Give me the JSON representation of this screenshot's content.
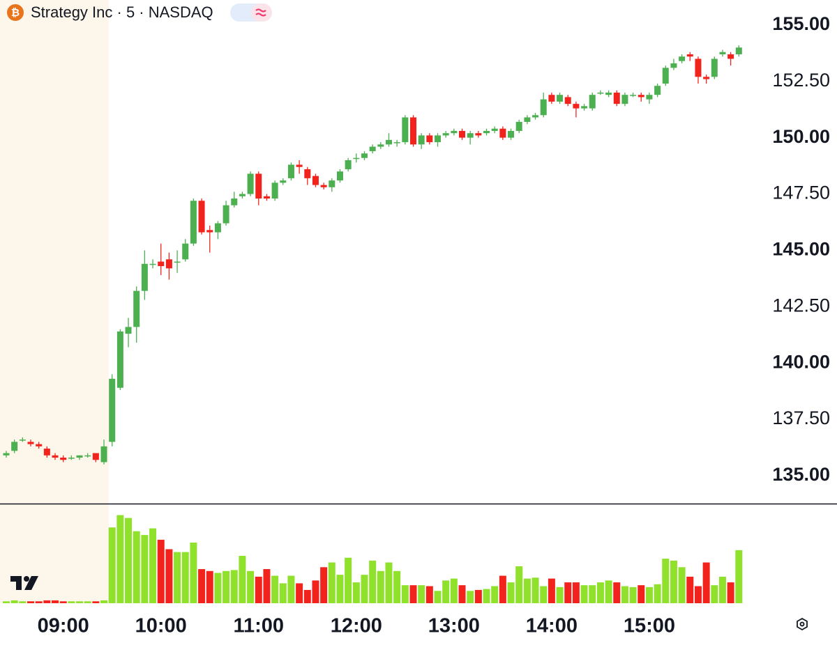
{
  "header": {
    "logo": "₿",
    "title": "Strategy Inc · 5 · NASDAQ"
  },
  "chart_data": {
    "type": "candlestick",
    "categories": [
      null,
      null,
      null,
      null,
      null,
      null,
      null,
      "09:00",
      null,
      null,
      null,
      null,
      null,
      null,
      null,
      null,
      null,
      null,
      null,
      "10:00",
      null,
      null,
      null,
      null,
      null,
      null,
      null,
      null,
      null,
      null,
      null,
      "11:00",
      null,
      null,
      null,
      null,
      null,
      null,
      null,
      null,
      null,
      null,
      null,
      "12:00",
      null,
      null,
      null,
      null,
      null,
      null,
      null,
      null,
      null,
      null,
      null,
      "13:00",
      null,
      null,
      null,
      null,
      null,
      null,
      null,
      null,
      null,
      null,
      null,
      "14:00",
      null,
      null,
      null,
      null,
      null,
      null,
      null,
      null,
      null,
      null,
      null,
      "15:00",
      null,
      null,
      null,
      null,
      null,
      null,
      null,
      null,
      null,
      null,
      null
    ],
    "open": [
      135.9,
      136.1,
      136.6,
      136.5,
      136.4,
      136.2,
      135.9,
      135.8,
      135.8,
      135.8,
      135.9,
      136.0,
      135.6,
      136.5,
      138.9,
      141.3,
      141.6,
      143.2,
      144.4,
      144.5,
      144.6,
      144.5,
      144.6,
      145.3,
      147.2,
      145.9,
      145.8,
      146.2,
      147.0,
      147.4,
      147.5,
      148.4,
      147.4,
      147.3,
      148.0,
      148.2,
      148.8,
      148.6,
      148.3,
      147.9,
      147.8,
      148.1,
      148.6,
      149.1,
      149.1,
      149.4,
      149.6,
      149.7,
      149.8,
      149.8,
      150.9,
      149.7,
      150.1,
      149.8,
      150.1,
      150.2,
      150.3,
      150.0,
      150.2,
      150.2,
      150.3,
      150.4,
      150.0,
      150.3,
      150.7,
      150.9,
      151.0,
      151.9,
      151.6,
      151.8,
      151.5,
      151.3,
      151.3,
      152.0,
      151.9,
      152.0,
      151.5,
      151.9,
      151.9,
      151.7,
      151.9,
      152.4,
      153.1,
      153.4,
      153.7,
      153.5,
      152.7,
      152.7,
      153.7,
      153.7,
      153.7
    ],
    "high": [
      136.1,
      136.6,
      136.7,
      136.6,
      136.5,
      136.3,
      136.0,
      135.9,
      135.9,
      135.9,
      136.0,
      136.0,
      136.6,
      139.5,
      141.5,
      142.0,
      143.4,
      145.0,
      144.6,
      145.3,
      144.9,
      145.0,
      145.5,
      147.3,
      147.3,
      146.1,
      146.3,
      147.2,
      147.6,
      147.6,
      148.5,
      148.5,
      147.5,
      148.1,
      148.2,
      148.9,
      149.0,
      148.7,
      148.4,
      148.0,
      148.2,
      148.6,
      149.1,
      149.3,
      149.4,
      149.7,
      149.8,
      150.2,
      149.9,
      151.0,
      151.0,
      150.2,
      150.2,
      150.2,
      150.3,
      150.4,
      150.4,
      150.3,
      150.3,
      150.4,
      150.5,
      150.5,
      150.4,
      150.8,
      151.0,
      151.1,
      152.0,
      152.0,
      152.0,
      151.9,
      151.6,
      151.5,
      152.0,
      152.1,
      152.1,
      152.1,
      152.0,
      152.0,
      152.0,
      152.0,
      152.4,
      153.2,
      153.5,
      153.7,
      153.8,
      153.6,
      152.8,
      153.6,
      153.9,
      153.8,
      154.1
    ],
    "low": [
      135.8,
      136.0,
      136.5,
      136.3,
      136.2,
      135.8,
      135.7,
      135.6,
      135.7,
      135.7,
      135.8,
      135.6,
      135.5,
      136.3,
      138.8,
      140.7,
      140.9,
      142.8,
      144.2,
      143.9,
      143.7,
      144.0,
      144.5,
      145.2,
      145.7,
      144.9,
      145.5,
      146.1,
      146.9,
      147.3,
      147.4,
      147.0,
      147.2,
      147.2,
      147.9,
      148.1,
      148.4,
      147.9,
      147.8,
      147.7,
      147.6,
      148.0,
      148.5,
      148.9,
      149.0,
      149.3,
      149.5,
      149.6,
      149.6,
      149.7,
      149.6,
      149.5,
      149.7,
      149.6,
      150.0,
      150.1,
      149.9,
      149.7,
      150.0,
      150.1,
      150.2,
      149.9,
      149.9,
      150.2,
      150.6,
      150.8,
      150.9,
      151.5,
      151.5,
      151.4,
      150.9,
      151.2,
      151.2,
      151.9,
      151.8,
      151.4,
      151.4,
      151.8,
      151.6,
      151.5,
      151.8,
      152.3,
      153.0,
      153.3,
      153.4,
      152.4,
      152.4,
      152.6,
      153.6,
      153.2,
      153.6
    ],
    "close": [
      136.0,
      136.5,
      136.6,
      136.4,
      136.3,
      135.9,
      135.8,
      135.7,
      135.8,
      135.9,
      135.9,
      135.7,
      136.3,
      139.3,
      141.4,
      141.6,
      143.2,
      144.4,
      144.4,
      144.3,
      144.2,
      144.5,
      145.3,
      147.2,
      145.8,
      145.8,
      146.2,
      147.0,
      147.3,
      147.5,
      148.4,
      147.3,
      147.3,
      148.0,
      148.1,
      148.8,
      148.7,
      148.2,
      147.9,
      147.8,
      148.1,
      148.5,
      149.0,
      149.1,
      149.3,
      149.6,
      149.7,
      149.9,
      149.8,
      150.9,
      149.7,
      150.1,
      149.8,
      150.1,
      150.2,
      150.3,
      150.0,
      150.2,
      150.1,
      150.3,
      150.4,
      150.0,
      150.3,
      150.7,
      150.9,
      151.0,
      151.7,
      151.6,
      151.9,
      151.5,
      151.3,
      151.4,
      151.9,
      152.0,
      152.0,
      151.5,
      151.9,
      151.9,
      151.8,
      151.9,
      152.3,
      153.1,
      153.3,
      153.6,
      153.6,
      152.7,
      152.6,
      153.5,
      153.8,
      153.5,
      154.0
    ],
    "volume": [
      2,
      3,
      2,
      2,
      2,
      3,
      3,
      2,
      2,
      2,
      2,
      2,
      3,
      80,
      93,
      90,
      76,
      72,
      79,
      67,
      57,
      54,
      54,
      64,
      36,
      34,
      32,
      34,
      35,
      50,
      34,
      28,
      36,
      29,
      21,
      29,
      21,
      14,
      24,
      38,
      43,
      30,
      48,
      22,
      30,
      45,
      34,
      43,
      34,
      19,
      19,
      19,
      18,
      13,
      24,
      26,
      19,
      13,
      14,
      15,
      18,
      29,
      22,
      39,
      26,
      27,
      18,
      26,
      17,
      22,
      22,
      19,
      19,
      22,
      24,
      22,
      18,
      17,
      19,
      17,
      20,
      47,
      45,
      38,
      28,
      18,
      43,
      19,
      28,
      22,
      56
    ],
    "ylim": [
      133.76,
      156.11
    ],
    "yticks": [
      {
        "value": 135,
        "label": "135.00"
      },
      {
        "value": 137.5,
        "label": "137.50"
      },
      {
        "value": 140,
        "label": "140.00"
      },
      {
        "value": 142.5,
        "label": "142.50"
      },
      {
        "value": 145,
        "label": "145.00"
      },
      {
        "value": 147.5,
        "label": "147.50"
      },
      {
        "value": 150,
        "label": "150.00"
      },
      {
        "value": 152.5,
        "label": "152.50"
      },
      {
        "value": 155,
        "label": "155.00"
      }
    ],
    "volume_ylim": [
      0,
      100
    ],
    "up_color": "#4caf50",
    "down_color": "#f2231d",
    "volume_up_color": "#8fe12c",
    "volume_down_color": "#f2231d"
  }
}
